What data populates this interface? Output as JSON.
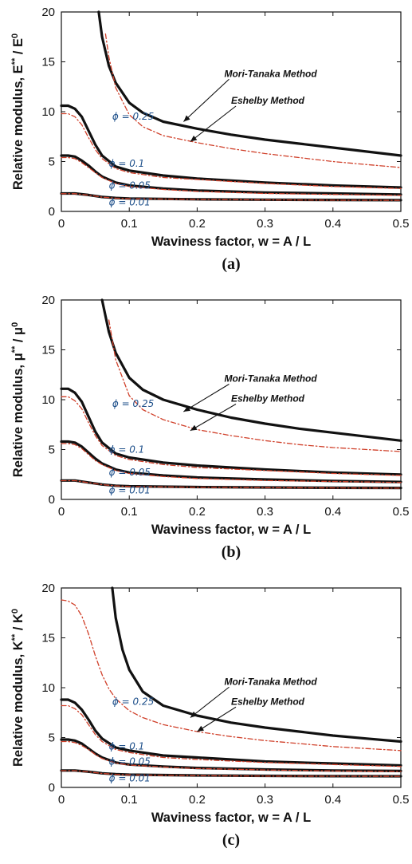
{
  "chart_data": [
    {
      "type": "line",
      "panel_label": "(a)",
      "xlabel": "Waviness factor, w = A / L",
      "ylabel": {
        "prefix": "Relative modulus, ",
        "sym": "E",
        "sup1": "**",
        "mid": " / ",
        "sym2": "E",
        "sup2": "0"
      },
      "xlim": [
        0,
        0.5
      ],
      "ylim": [
        0,
        20
      ],
      "xticks": [
        "0",
        "0.1",
        "0.2",
        "0.3",
        "0.4",
        "0.5"
      ],
      "yticks": [
        "0",
        "5",
        "10",
        "15",
        "20"
      ],
      "methods": [
        "Mori-Tanaka Method",
        "Eshelby Method"
      ],
      "volume_fractions": [
        "ϕ = 0.25",
        "ϕ = 0.1",
        "ϕ = 0.05",
        "ϕ = 0.01"
      ],
      "series": [
        {
          "name": "Mori-Tanaka Method, ϕ = 0.25",
          "x": [
            0.055,
            0.06,
            0.07,
            0.08,
            0.1,
            0.12,
            0.15,
            0.2,
            0.25,
            0.3,
            0.35,
            0.4,
            0.45,
            0.5
          ],
          "y": [
            20,
            17.5,
            14.6,
            12.9,
            10.9,
            9.9,
            9.0,
            8.3,
            7.7,
            7.2,
            6.8,
            6.4,
            6.0,
            5.6
          ]
        },
        {
          "name": "Eshelby Method, ϕ = 0.25",
          "x": [
            0.065,
            0.07,
            0.08,
            0.1,
            0.12,
            0.15,
            0.2,
            0.25,
            0.3,
            0.35,
            0.4,
            0.45,
            0.5
          ],
          "y": [
            17.8,
            15.5,
            12.4,
            9.7,
            8.5,
            7.6,
            6.9,
            6.3,
            5.8,
            5.4,
            5.0,
            4.7,
            4.4
          ]
        },
        {
          "name": "Mori-Tanaka Method, ϕ = 0.1",
          "x": [
            0.0,
            0.01,
            0.02,
            0.03,
            0.04,
            0.05,
            0.06,
            0.08,
            0.1,
            0.15,
            0.2,
            0.3,
            0.4,
            0.5
          ],
          "y": [
            10.6,
            10.6,
            10.3,
            9.5,
            8.1,
            6.7,
            5.6,
            4.5,
            4.1,
            3.6,
            3.3,
            2.9,
            2.6,
            2.4
          ]
        },
        {
          "name": "Eshelby Method, ϕ = 0.1",
          "x": [
            0.0,
            0.01,
            0.02,
            0.03,
            0.04,
            0.05,
            0.06,
            0.08,
            0.1,
            0.15,
            0.2,
            0.3,
            0.4,
            0.5
          ],
          "y": [
            9.8,
            9.8,
            9.5,
            8.7,
            7.4,
            6.2,
            5.3,
            4.3,
            3.9,
            3.4,
            3.2,
            2.8,
            2.5,
            2.3
          ]
        },
        {
          "name": "Mori-Tanaka Method, ϕ = 0.05",
          "x": [
            0.0,
            0.01,
            0.02,
            0.03,
            0.04,
            0.05,
            0.06,
            0.08,
            0.1,
            0.15,
            0.2,
            0.3,
            0.4,
            0.5
          ],
          "y": [
            5.6,
            5.6,
            5.5,
            5.1,
            4.6,
            4.0,
            3.5,
            2.9,
            2.6,
            2.3,
            2.1,
            1.9,
            1.8,
            1.7
          ]
        },
        {
          "name": "Eshelby Method, ϕ = 0.05",
          "x": [
            0.0,
            0.01,
            0.02,
            0.03,
            0.04,
            0.05,
            0.06,
            0.08,
            0.1,
            0.15,
            0.2,
            0.3,
            0.4,
            0.5
          ],
          "y": [
            5.4,
            5.4,
            5.3,
            4.9,
            4.4,
            3.9,
            3.4,
            2.8,
            2.5,
            2.2,
            2.0,
            1.8,
            1.7,
            1.6
          ]
        },
        {
          "name": "Mori-Tanaka Method, ϕ = 0.01",
          "x": [
            0.0,
            0.02,
            0.04,
            0.06,
            0.08,
            0.1,
            0.2,
            0.3,
            0.4,
            0.5
          ],
          "y": [
            1.8,
            1.8,
            1.65,
            1.45,
            1.35,
            1.3,
            1.22,
            1.18,
            1.15,
            1.13
          ]
        },
        {
          "name": "Eshelby Method, ϕ = 0.01",
          "x": [
            0.0,
            0.02,
            0.04,
            0.06,
            0.08,
            0.1,
            0.2,
            0.3,
            0.4,
            0.5
          ],
          "y": [
            1.78,
            1.78,
            1.63,
            1.43,
            1.33,
            1.28,
            1.2,
            1.16,
            1.13,
            1.11
          ]
        }
      ]
    },
    {
      "type": "line",
      "panel_label": "(b)",
      "xlabel": "Waviness factor, w = A / L",
      "ylabel": {
        "prefix": "Relative modulus, ",
        "sym": "μ",
        "sup1": "**",
        "mid": " / ",
        "sym2": "μ",
        "sup2": "0"
      },
      "xlim": [
        0,
        0.5
      ],
      "ylim": [
        0,
        20
      ],
      "xticks": [
        "0",
        "0.1",
        "0.2",
        "0.3",
        "0.4",
        "0.5"
      ],
      "yticks": [
        "0",
        "5",
        "10",
        "15",
        "20"
      ],
      "methods": [
        "Mori-Tanaka Method",
        "Eshelby Method"
      ],
      "volume_fractions": [
        "ϕ = 0.25",
        "ϕ = 0.1",
        "ϕ = 0.05",
        "ϕ = 0.01"
      ],
      "series": [
        {
          "name": "Mori-Tanaka Method, ϕ = 0.25",
          "x": [
            0.06,
            0.07,
            0.08,
            0.1,
            0.12,
            0.15,
            0.2,
            0.25,
            0.3,
            0.35,
            0.4,
            0.45,
            0.5
          ],
          "y": [
            20,
            16.8,
            14.7,
            12.2,
            11.0,
            10.0,
            9.0,
            8.2,
            7.6,
            7.1,
            6.7,
            6.3,
            5.9
          ]
        },
        {
          "name": "Eshelby Method, ϕ = 0.25",
          "x": [
            0.07,
            0.08,
            0.1,
            0.12,
            0.15,
            0.2,
            0.25,
            0.3,
            0.35,
            0.4,
            0.45,
            0.5
          ],
          "y": [
            18.0,
            14.0,
            10.4,
            9.0,
            8.0,
            7.0,
            6.4,
            5.9,
            5.5,
            5.2,
            5.0,
            4.8
          ]
        },
        {
          "name": "Mori-Tanaka Method, ϕ = 0.1",
          "x": [
            0.0,
            0.01,
            0.02,
            0.03,
            0.04,
            0.05,
            0.06,
            0.08,
            0.1,
            0.15,
            0.2,
            0.3,
            0.4,
            0.5
          ],
          "y": [
            11.1,
            11.1,
            10.7,
            9.8,
            8.3,
            6.8,
            5.7,
            4.6,
            4.2,
            3.7,
            3.4,
            3.0,
            2.7,
            2.5
          ]
        },
        {
          "name": "Eshelby Method, ϕ = 0.1",
          "x": [
            0.0,
            0.01,
            0.02,
            0.03,
            0.04,
            0.05,
            0.06,
            0.08,
            0.1,
            0.15,
            0.2,
            0.3,
            0.4,
            0.5
          ],
          "y": [
            10.3,
            10.3,
            9.9,
            9.1,
            7.7,
            6.4,
            5.4,
            4.4,
            4.0,
            3.5,
            3.2,
            2.9,
            2.6,
            2.4
          ]
        },
        {
          "name": "Mori-Tanaka Method, ϕ = 0.05",
          "x": [
            0.0,
            0.01,
            0.02,
            0.03,
            0.04,
            0.05,
            0.06,
            0.08,
            0.1,
            0.15,
            0.2,
            0.3,
            0.4,
            0.5
          ],
          "y": [
            5.8,
            5.8,
            5.7,
            5.3,
            4.7,
            4.1,
            3.6,
            3.0,
            2.7,
            2.4,
            2.2,
            2.0,
            1.85,
            1.75
          ]
        },
        {
          "name": "Eshelby Method, ϕ = 0.05",
          "x": [
            0.0,
            0.01,
            0.02,
            0.03,
            0.04,
            0.05,
            0.06,
            0.08,
            0.1,
            0.15,
            0.2,
            0.3,
            0.4,
            0.5
          ],
          "y": [
            5.6,
            5.6,
            5.5,
            5.1,
            4.5,
            3.9,
            3.5,
            2.9,
            2.6,
            2.3,
            2.1,
            1.9,
            1.8,
            1.7
          ]
        },
        {
          "name": "Mori-Tanaka Method, ϕ = 0.01",
          "x": [
            0.0,
            0.02,
            0.04,
            0.06,
            0.08,
            0.1,
            0.2,
            0.3,
            0.4,
            0.5
          ],
          "y": [
            1.9,
            1.9,
            1.7,
            1.5,
            1.38,
            1.32,
            1.24,
            1.2,
            1.17,
            1.15
          ]
        },
        {
          "name": "Eshelby Method, ϕ = 0.01",
          "x": [
            0.0,
            0.02,
            0.04,
            0.06,
            0.08,
            0.1,
            0.2,
            0.3,
            0.4,
            0.5
          ],
          "y": [
            1.88,
            1.88,
            1.68,
            1.48,
            1.36,
            1.3,
            1.22,
            1.18,
            1.15,
            1.13
          ]
        }
      ]
    },
    {
      "type": "line",
      "panel_label": "(c)",
      "xlabel": "Waviness factor, w = A / L",
      "ylabel": {
        "prefix": "Relative modulus, ",
        "sym": "K",
        "sup1": "**",
        "mid": " / ",
        "sym2": "K",
        "sup2": "0"
      },
      "xlim": [
        0,
        0.5
      ],
      "ylim": [
        0,
        20
      ],
      "xticks": [
        "0",
        "0.1",
        "0.2",
        "0.3",
        "0.4",
        "0.5"
      ],
      "yticks": [
        "0",
        "5",
        "10",
        "15",
        "20"
      ],
      "methods": [
        "Mori-Tanaka Method",
        "Eshelby Method"
      ],
      "volume_fractions": [
        "ϕ = 0.25",
        "ϕ = 0.1",
        "ϕ = 0.05",
        "ϕ = 0.01"
      ],
      "series": [
        {
          "name": "Mori-Tanaka Method, ϕ = 0.25",
          "x": [
            0.075,
            0.08,
            0.09,
            0.1,
            0.12,
            0.15,
            0.2,
            0.25,
            0.3,
            0.35,
            0.4,
            0.45,
            0.5
          ],
          "y": [
            20,
            17.0,
            13.8,
            11.8,
            9.6,
            8.2,
            7.2,
            6.5,
            6.0,
            5.6,
            5.2,
            4.9,
            4.6
          ]
        },
        {
          "name": "Eshelby Method, ϕ = 0.25",
          "x": [
            0.0,
            0.01,
            0.02,
            0.03,
            0.04,
            0.05,
            0.06,
            0.07,
            0.08,
            0.1,
            0.12,
            0.15,
            0.2,
            0.25,
            0.3,
            0.35,
            0.4,
            0.45,
            0.5
          ],
          "y": [
            18.8,
            18.7,
            18.3,
            17.2,
            15.4,
            13.2,
            11.3,
            9.9,
            8.9,
            7.7,
            7.0,
            6.3,
            5.6,
            5.1,
            4.7,
            4.4,
            4.1,
            3.9,
            3.7
          ]
        },
        {
          "name": "Mori-Tanaka Method, ϕ = 0.1",
          "x": [
            0.0,
            0.01,
            0.02,
            0.03,
            0.04,
            0.05,
            0.06,
            0.08,
            0.1,
            0.15,
            0.2,
            0.3,
            0.4,
            0.5
          ],
          "y": [
            8.8,
            8.8,
            8.5,
            7.8,
            6.8,
            5.7,
            4.9,
            4.0,
            3.7,
            3.2,
            3.0,
            2.6,
            2.4,
            2.2
          ]
        },
        {
          "name": "Eshelby Method, ϕ = 0.1",
          "x": [
            0.0,
            0.01,
            0.02,
            0.03,
            0.04,
            0.05,
            0.06,
            0.08,
            0.1,
            0.15,
            0.2,
            0.3,
            0.4,
            0.5
          ],
          "y": [
            8.2,
            8.2,
            7.9,
            7.3,
            6.3,
            5.3,
            4.6,
            3.8,
            3.5,
            3.0,
            2.8,
            2.5,
            2.3,
            2.1
          ]
        },
        {
          "name": "Mori-Tanaka Method, ϕ = 0.05",
          "x": [
            0.0,
            0.01,
            0.02,
            0.03,
            0.04,
            0.05,
            0.06,
            0.08,
            0.1,
            0.15,
            0.2,
            0.3,
            0.4,
            0.5
          ],
          "y": [
            4.8,
            4.8,
            4.7,
            4.4,
            3.9,
            3.4,
            3.0,
            2.5,
            2.3,
            2.1,
            1.95,
            1.8,
            1.7,
            1.65
          ]
        },
        {
          "name": "Eshelby Method, ϕ = 0.05",
          "x": [
            0.0,
            0.01,
            0.02,
            0.03,
            0.04,
            0.05,
            0.06,
            0.08,
            0.1,
            0.15,
            0.2,
            0.3,
            0.4,
            0.5
          ],
          "y": [
            4.6,
            4.6,
            4.5,
            4.2,
            3.8,
            3.3,
            2.9,
            2.45,
            2.25,
            2.05,
            1.9,
            1.75,
            1.65,
            1.6
          ]
        },
        {
          "name": "Mori-Tanaka Method, ϕ = 0.01",
          "x": [
            0.0,
            0.02,
            0.04,
            0.06,
            0.08,
            0.1,
            0.2,
            0.3,
            0.4,
            0.5
          ],
          "y": [
            1.7,
            1.7,
            1.58,
            1.42,
            1.33,
            1.28,
            1.2,
            1.16,
            1.13,
            1.12
          ]
        },
        {
          "name": "Eshelby Method, ϕ = 0.01",
          "x": [
            0.0,
            0.02,
            0.04,
            0.06,
            0.08,
            0.1,
            0.2,
            0.3,
            0.4,
            0.5
          ],
          "y": [
            1.68,
            1.68,
            1.56,
            1.4,
            1.31,
            1.26,
            1.18,
            1.14,
            1.12,
            1.11
          ]
        }
      ]
    }
  ],
  "style": {
    "mori_tanaka_color": "#111111",
    "eshelby_color": "#d0402a",
    "phi_label_color": "#1d4f8a",
    "panel_background": "#ffffff"
  }
}
